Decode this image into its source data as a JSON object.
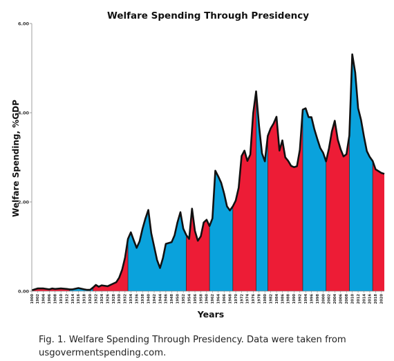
{
  "caption": "Fig. 1. Welfare Spending Through Presidency. Data were taken from usgovermentspending.com.",
  "colors": {
    "democrat": "#0aa2dc",
    "republican": "#ed1c36",
    "outline": "#111111"
  },
  "chart_data": {
    "type": "area",
    "title": "Welfare Spending Through Presidency",
    "xlabel": "Years",
    "ylabel": "Welfare Spending, %GDP",
    "xlim": [
      1900,
      2021
    ],
    "ylim": [
      0,
      6
    ],
    "yticks": [
      "0.00",
      "2.00",
      "4.00",
      "6.00"
    ],
    "ytick_values": [
      0,
      2,
      4,
      6
    ],
    "xticks": [
      1900,
      1902,
      1904,
      1906,
      1908,
      1910,
      1912,
      1914,
      1916,
      1918,
      1920,
      1922,
      1924,
      1926,
      1928,
      1930,
      1932,
      1934,
      1936,
      1938,
      1940,
      1942,
      1944,
      1946,
      1948,
      1950,
      1952,
      1954,
      1956,
      1958,
      1960,
      1962,
      1964,
      1966,
      1968,
      1970,
      1972,
      1974,
      1976,
      1978,
      1980,
      1982,
      1984,
      1986,
      1988,
      1990,
      1992,
      1994,
      1996,
      1998,
      2000,
      2002,
      2004,
      2006,
      2008,
      2010,
      2012,
      2014,
      2016,
      2018,
      2020
    ],
    "grid": false,
    "legend": "none",
    "series": [
      {
        "x": [
          1900,
          1902,
          1904,
          1906,
          1907,
          1908,
          1910,
          1912,
          1913,
          1914,
          1916,
          1918,
          1919,
          1920,
          1921,
          1922,
          1923,
          1924,
          1926,
          1928,
          1929,
          1930,
          1931,
          1932,
          1933,
          1934,
          1935,
          1936,
          1937,
          1938,
          1939,
          1940,
          1941,
          1942,
          1943,
          1944,
          1945,
          1946,
          1948,
          1949,
          1950,
          1951,
          1952,
          1953,
          1954,
          1955,
          1956,
          1957,
          1958,
          1959,
          1960,
          1961,
          1962,
          1963,
          1964,
          1965,
          1966,
          1967,
          1968,
          1969,
          1970,
          1971,
          1972,
          1973,
          1974,
          1975,
          1976,
          1977,
          1978,
          1979,
          1980,
          1981,
          1982,
          1983,
          1984,
          1985,
          1986,
          1987,
          1988,
          1989,
          1990,
          1991,
          1992,
          1993,
          1994,
          1995,
          1996,
          1997,
          1998,
          1999,
          2000,
          2001,
          2002,
          2003,
          2004,
          2005,
          2006,
          2007,
          2008,
          2009,
          2010,
          2011,
          2012,
          2013,
          2014,
          2015,
          2016,
          2017,
          2018,
          2019,
          2020,
          2021
        ],
        "y": [
          0.02,
          0.06,
          0.06,
          0.04,
          0.06,
          0.05,
          0.06,
          0.05,
          0.04,
          0.04,
          0.07,
          0.04,
          0.03,
          0.03,
          0.08,
          0.14,
          0.1,
          0.13,
          0.11,
          0.17,
          0.2,
          0.3,
          0.48,
          0.75,
          1.17,
          1.32,
          1.14,
          0.97,
          1.12,
          1.4,
          1.63,
          1.82,
          1.3,
          1.0,
          0.7,
          0.52,
          0.74,
          1.06,
          1.1,
          1.25,
          1.54,
          1.77,
          1.4,
          1.26,
          1.17,
          1.85,
          1.35,
          1.13,
          1.23,
          1.54,
          1.6,
          1.46,
          1.63,
          2.7,
          2.57,
          2.43,
          2.19,
          1.9,
          1.81,
          1.9,
          2.03,
          2.32,
          3.03,
          3.15,
          2.92,
          3.06,
          3.99,
          4.48,
          3.7,
          3.09,
          2.91,
          3.48,
          3.65,
          3.76,
          3.91,
          3.15,
          3.38,
          3.0,
          2.92,
          2.81,
          2.78,
          2.8,
          3.17,
          4.07,
          4.1,
          3.9,
          3.9,
          3.63,
          3.41,
          3.21,
          3.1,
          2.91,
          3.2,
          3.58,
          3.82,
          3.4,
          3.18,
          3.02,
          3.07,
          3.49,
          5.31,
          4.9,
          4.1,
          3.84,
          3.47,
          3.14,
          3.01,
          2.92,
          2.73,
          2.69,
          2.65,
          2.63
        ]
      }
    ],
    "presidencies": [
      {
        "party": "republican",
        "start": 1900,
        "end": 1913
      },
      {
        "party": "democrat",
        "start": 1913,
        "end": 1921
      },
      {
        "party": "republican",
        "start": 1921,
        "end": 1933
      },
      {
        "party": "democrat",
        "start": 1933,
        "end": 1953
      },
      {
        "party": "republican",
        "start": 1953,
        "end": 1961
      },
      {
        "party": "democrat",
        "start": 1961,
        "end": 1969
      },
      {
        "party": "republican",
        "start": 1969,
        "end": 1977
      },
      {
        "party": "democrat",
        "start": 1977,
        "end": 1981
      },
      {
        "party": "republican",
        "start": 1981,
        "end": 1993
      },
      {
        "party": "democrat",
        "start": 1993,
        "end": 2001
      },
      {
        "party": "republican",
        "start": 2001,
        "end": 2009
      },
      {
        "party": "democrat",
        "start": 2009,
        "end": 2017
      },
      {
        "party": "republican",
        "start": 2017,
        "end": 2021
      }
    ]
  }
}
